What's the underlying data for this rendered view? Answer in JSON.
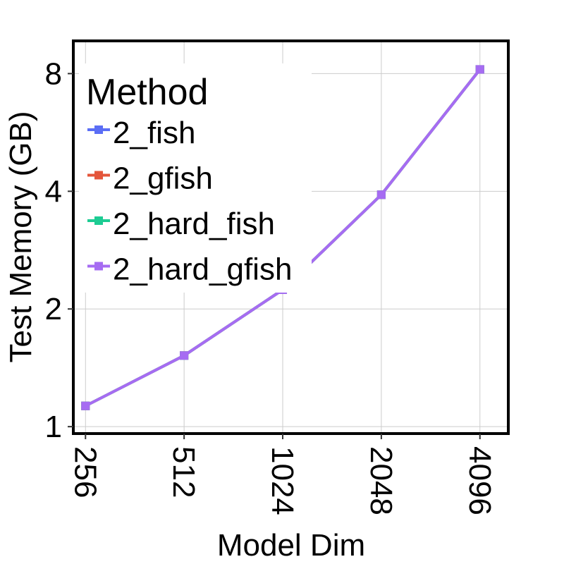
{
  "chart_data": {
    "type": "line",
    "xlabel": "Model Dim",
    "ylabel": "Test Memory (GB)",
    "x_scale": "log2",
    "y_scale": "log2",
    "x": [
      256,
      512,
      1024,
      2048,
      4096
    ],
    "x_tick_labels": [
      "256",
      "512",
      "1024",
      "2048",
      "4096"
    ],
    "y_ticks": [
      1,
      2,
      4,
      8
    ],
    "y_tick_labels": [
      "1",
      "2",
      "4",
      "8"
    ],
    "xlim": [
      235,
      5000
    ],
    "ylim": [
      0.96,
      9.7
    ],
    "grid": true,
    "legend": {
      "title": "Method",
      "placement": "top-left",
      "entries": [
        "2_fish",
        "2_gfish",
        "2_hard_fish",
        "2_hard_gfish"
      ]
    },
    "series": [
      {
        "name": "2_fish",
        "color": "#5b6ef5",
        "values": [
          1.13,
          1.52,
          2.24,
          3.92,
          8.2
        ]
      },
      {
        "name": "2_gfish",
        "color": "#e4553a",
        "values": [
          1.13,
          1.52,
          2.24,
          3.92,
          8.2
        ]
      },
      {
        "name": "2_hard_fish",
        "color": "#1dcc93",
        "values": [
          1.13,
          1.52,
          2.24,
          3.92,
          8.2
        ]
      },
      {
        "name": "2_hard_gfish",
        "color": "#a66cf2",
        "values": [
          1.13,
          1.52,
          2.24,
          3.92,
          8.2
        ]
      }
    ]
  }
}
